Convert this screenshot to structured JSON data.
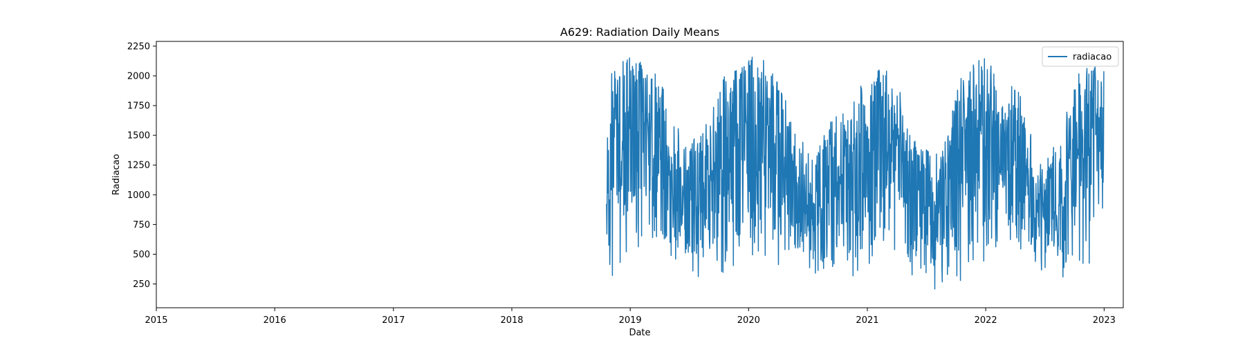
{
  "chart_data": {
    "type": "line",
    "title": "A629: Radiation Daily Means",
    "xlabel": "Date",
    "ylabel": "Radiacao",
    "xlim": [
      "2015-01-01",
      "2023-03-01"
    ],
    "ylim": [
      50,
      2290
    ],
    "x_ticks": [
      "2015",
      "2016",
      "2017",
      "2018",
      "2019",
      "2020",
      "2021",
      "2022",
      "2023"
    ],
    "y_ticks": [
      250,
      500,
      750,
      1000,
      1250,
      1500,
      1750,
      2000,
      2250
    ],
    "grid": false,
    "legend_position": "top-right",
    "series": [
      {
        "name": "radiacao",
        "color": "#1f77b4",
        "x_start": "2018-10-20",
        "x_end": "2022-12-31",
        "approx_monthly_envelope": [
          {
            "date": "2018-11",
            "low": 300,
            "high": 2100
          },
          {
            "date": "2019-01",
            "low": 500,
            "high": 2180
          },
          {
            "date": "2019-04",
            "low": 500,
            "high": 1950
          },
          {
            "date": "2019-06",
            "low": 300,
            "high": 1400
          },
          {
            "date": "2019-08",
            "low": 300,
            "high": 1550
          },
          {
            "date": "2019-10",
            "low": 250,
            "high": 2000
          },
          {
            "date": "2020-01",
            "low": 400,
            "high": 2180
          },
          {
            "date": "2020-03",
            "low": 350,
            "high": 2150
          },
          {
            "date": "2020-05",
            "low": 280,
            "high": 1600
          },
          {
            "date": "2020-07",
            "low": 300,
            "high": 1300
          },
          {
            "date": "2020-09",
            "low": 250,
            "high": 1650
          },
          {
            "date": "2020-11",
            "low": 300,
            "high": 1850
          },
          {
            "date": "2021-02",
            "low": 450,
            "high": 2100
          },
          {
            "date": "2021-04",
            "low": 400,
            "high": 1850
          },
          {
            "date": "2021-06",
            "low": 250,
            "high": 1400
          },
          {
            "date": "2021-08",
            "low": 170,
            "high": 1350
          },
          {
            "date": "2021-10",
            "low": 270,
            "high": 2000
          },
          {
            "date": "2021-12",
            "low": 400,
            "high": 2170
          },
          {
            "date": "2022-02",
            "low": 400,
            "high": 2050
          },
          {
            "date": "2022-04",
            "low": 350,
            "high": 1850
          },
          {
            "date": "2022-06",
            "low": 370,
            "high": 1300
          },
          {
            "date": "2022-08",
            "low": 170,
            "high": 1500
          },
          {
            "date": "2022-10",
            "low": 300,
            "high": 2050
          },
          {
            "date": "2022-12",
            "low": 500,
            "high": 2100
          }
        ]
      }
    ]
  }
}
